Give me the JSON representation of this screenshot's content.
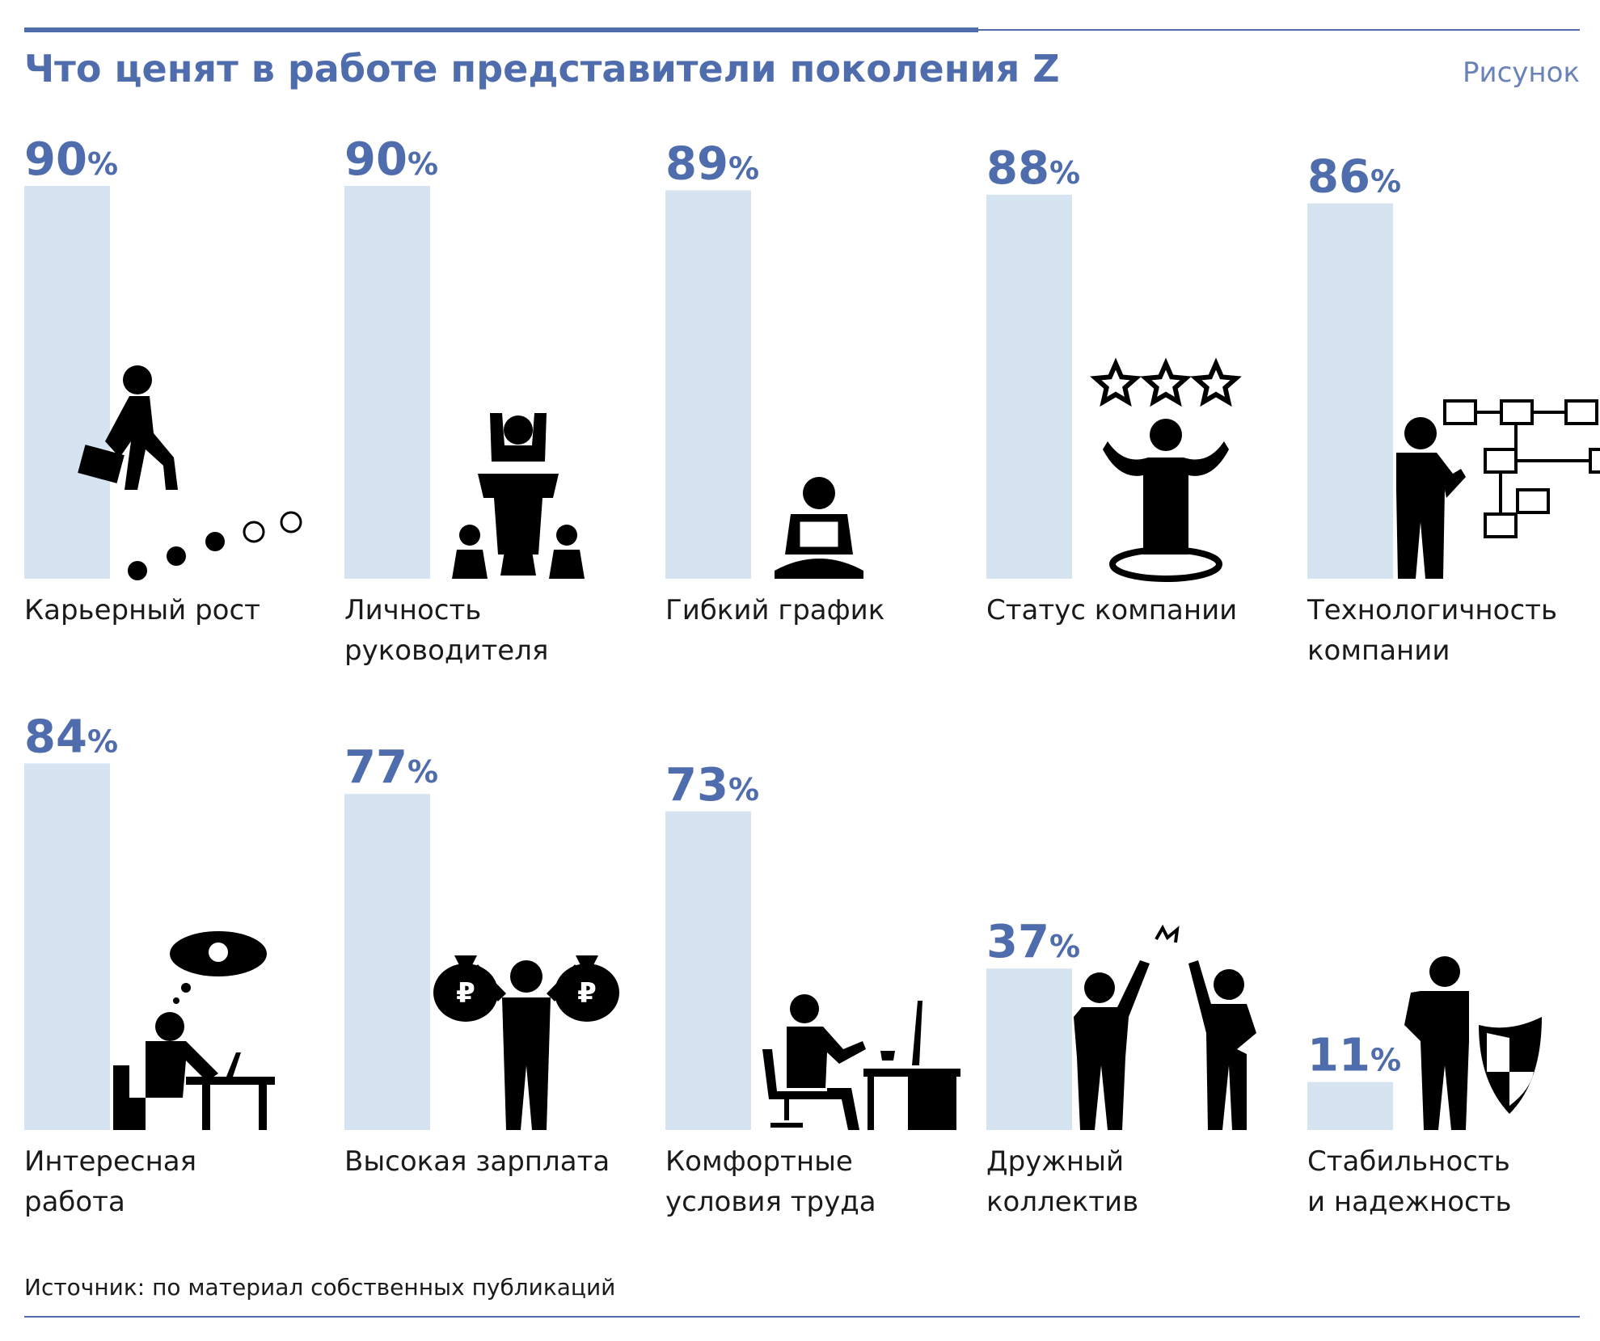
{
  "header": {
    "title": "Что ценят в работе представители поколения Z",
    "figure_label": "Рисунок"
  },
  "source": "Источник: по материал собственных публикаций",
  "colors": {
    "accent": "#4f6dad",
    "bar": "#d6e4f1",
    "icon": "#000000"
  },
  "chart_data": {
    "type": "bar",
    "ylim": [
      0,
      100
    ],
    "grid": false,
    "unit": "%",
    "categories": [
      "Карьерный рост",
      "Личность руководителя",
      "Гибкий график",
      "Статус компании",
      "Технологичность компании",
      "Интересная работа",
      "Высокая зарплата",
      "Комфортные условия труда",
      "Дружный коллектив",
      "Стабильность и надежность"
    ],
    "values": [
      90,
      90,
      89,
      88,
      86,
      84,
      77,
      73,
      37,
      11
    ],
    "items": [
      {
        "label_lines": [
          "Карьерный рост"
        ],
        "value": 90,
        "icon": "career-stairs-icon"
      },
      {
        "label_lines": [
          "Личность",
          "руководителя"
        ],
        "value": 90,
        "icon": "leader-podium-icon"
      },
      {
        "label_lines": [
          "Гибкий график"
        ],
        "value": 89,
        "icon": "laptop-person-icon"
      },
      {
        "label_lines": [
          "Статус компании"
        ],
        "value": 88,
        "icon": "stars-person-icon"
      },
      {
        "label_lines": [
          "Технологичность",
          "компании"
        ],
        "value": 86,
        "icon": "tech-network-icon"
      },
      {
        "label_lines": [
          "Интересная",
          "работа"
        ],
        "value": 84,
        "icon": "idea-thinking-icon"
      },
      {
        "label_lines": [
          "Высокая зарплата"
        ],
        "value": 77,
        "icon": "money-bags-icon"
      },
      {
        "label_lines": [
          "Комфортные",
          "условия труда"
        ],
        "value": 73,
        "icon": "office-desk-icon"
      },
      {
        "label_lines": [
          "Дружный",
          "коллектив"
        ],
        "value": 37,
        "icon": "high-five-icon"
      },
      {
        "label_lines": [
          "Стабильность",
          "и надежность"
        ],
        "value": 11,
        "icon": "shield-person-icon"
      }
    ]
  }
}
